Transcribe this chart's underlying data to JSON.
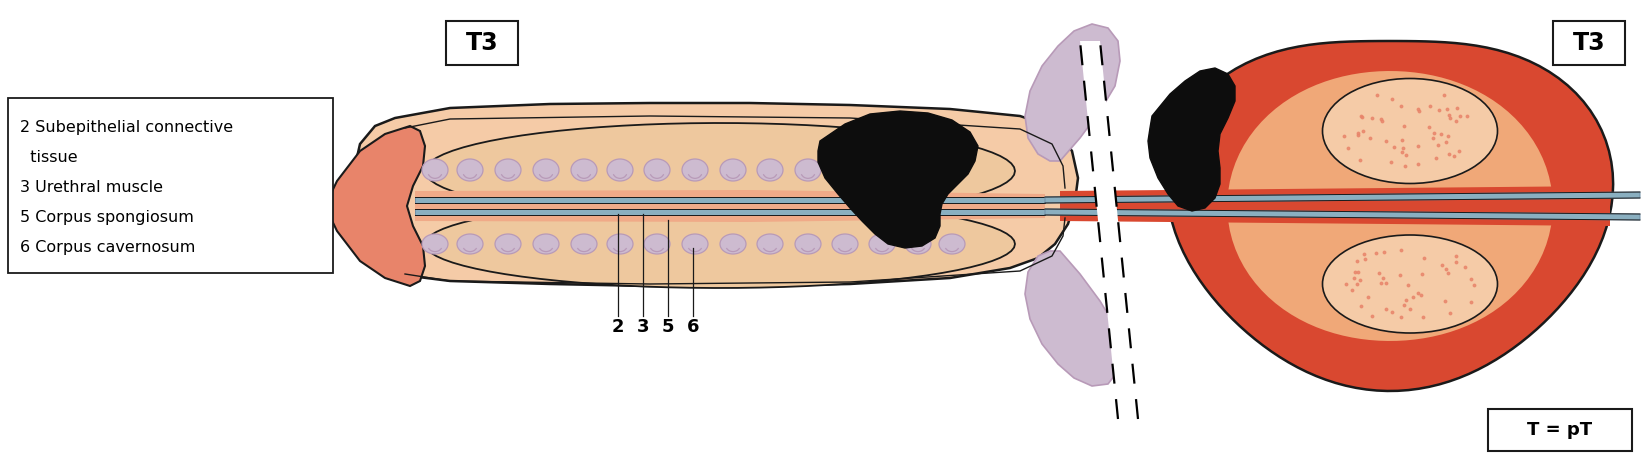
{
  "bg_color": "#ffffff",
  "skin_peach_light": "#F5CBA7",
  "skin_peach": "#F0A878",
  "skin_salmon": "#E8846A",
  "skin_red": "#CC3E2A",
  "skin_orange_red": "#D94830",
  "cc_fill": "#EEC89E",
  "cs_fill": "#F0AA88",
  "urethra_blue": "#8AAFC0",
  "urethra_blue2": "#7090A8",
  "lavender_light": "#CDBBD0",
  "lavender": "#B89AB8",
  "lavender_dark": "#9878A0",
  "tumor_black": "#0D0D0D",
  "line_color": "#1A1A1A",
  "t3_label": "T3",
  "t_pt_label": "T = pT",
  "legend_lines": [
    "2 Subepithelial connective",
    "  tissue",
    "3 Urethral muscle",
    "5 Corpus spongiosum",
    "6 Corpus cavernosum"
  ]
}
